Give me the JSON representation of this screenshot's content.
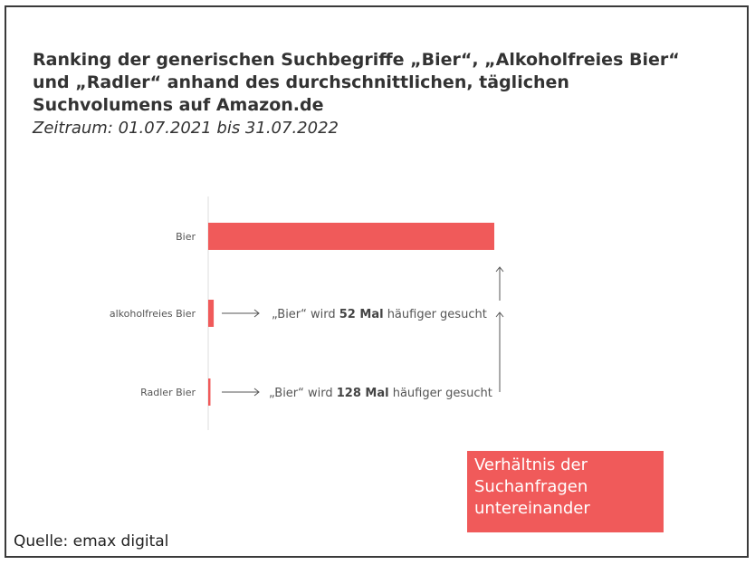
{
  "chart_data": {
    "type": "bar",
    "orientation": "horizontal",
    "title": "Ranking der generischen Suchbegriffe „Bier“, „Alkoholfreies Bier“ und „Radler“ anhand des durchschnittlichen, täglichen Suchvolumens auf Amazon.de",
    "subtitle": "Zeitraum: 01.07.2021 bis 31.07.2022",
    "categories": [
      "Bier",
      "alkoholfreies Bier",
      "Radler Bier"
    ],
    "values": [
      128,
      2.46,
      1
    ],
    "value_unit": "relative, Radler Bier = 1",
    "xlim": [
      0,
      128
    ],
    "grid": false,
    "bar_color": "#f05a5a",
    "annotations": [
      {
        "target": "alkoholfreies Bier",
        "prefix": "„Bier“ wird ",
        "bold": "52 Mal",
        "suffix": " häufiger gesucht"
      },
      {
        "target": "Radler Bier",
        "prefix": "„Bier“ wird ",
        "bold": "128 Mal",
        "suffix": " häufiger gesucht"
      }
    ],
    "legend_box": [
      "Verhältnis der",
      "Suchanfragen",
      "untereinander"
    ],
    "source": "Quelle: emax digital"
  }
}
